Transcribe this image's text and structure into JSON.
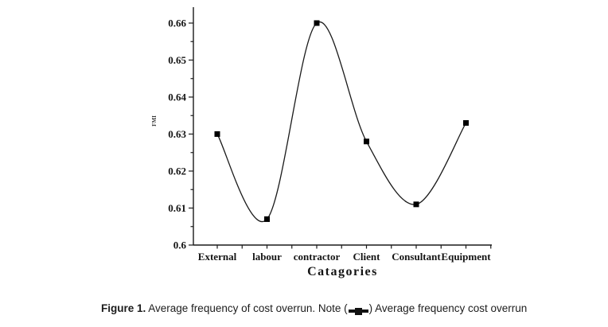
{
  "page": {
    "background": "#ffffff"
  },
  "chart_data": {
    "type": "line",
    "title": "",
    "xlabel": "Catagories",
    "ylabel": "FMI",
    "categories": [
      "External",
      "labour",
      "contractor",
      "Client",
      "Consultant",
      "Equipment"
    ],
    "series": [
      {
        "name": "Average frequency cost overrun",
        "marker": "filled-square",
        "color": "#111111",
        "values": [
          0.63,
          0.607,
          0.66,
          0.628,
          0.611,
          0.633
        ]
      }
    ],
    "ylim": [
      0.6,
      0.664
    ],
    "yticks": [
      0.6,
      0.61,
      0.62,
      0.63,
      0.64,
      0.65,
      0.66
    ],
    "ytick_labels": [
      "0.6",
      "0.61",
      "0.62",
      "0.63",
      "0.64",
      "0.65",
      "0.66"
    ],
    "yticks_minor": [
      0.605,
      0.615,
      0.625,
      0.635,
      0.645,
      0.655
    ],
    "grid": false,
    "smooth": true,
    "legend_position": "none",
    "line_color": "#1a1a1a"
  },
  "caption": {
    "figure_label": "Figure 1.",
    "text_before": " Average frequency of cost overrun. Note (",
    "symbol": "line-with-square-marker",
    "text_after": ") Average frequency cost overrun"
  }
}
